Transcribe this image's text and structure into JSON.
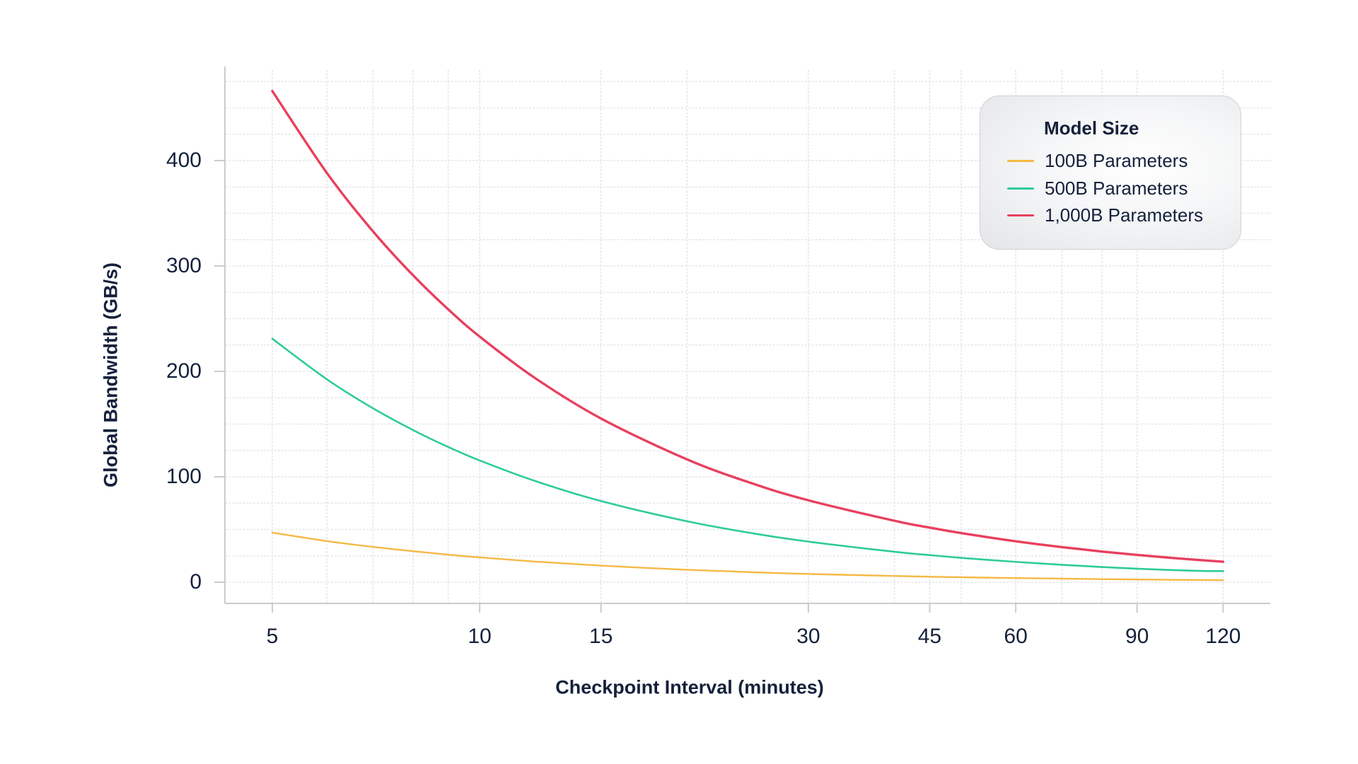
{
  "chart_data": {
    "type": "line",
    "title": "",
    "xlabel": "Checkpoint Interval (minutes)",
    "ylabel": "Global Bandwidth (GB/s)",
    "x_scale": "log",
    "x_ticks": [
      5,
      10,
      15,
      30,
      45,
      60,
      90,
      120
    ],
    "x_tick_labels": [
      "5",
      "10",
      "15",
      "30",
      "45",
      "60",
      "90",
      "120"
    ],
    "x_gridlines": [
      5,
      6,
      7,
      8,
      9,
      10,
      15,
      20,
      30,
      40,
      45,
      50,
      60,
      70,
      80,
      90,
      120
    ],
    "y_ticks": [
      0,
      100,
      200,
      300,
      400
    ],
    "y_tick_labels": [
      "0",
      "100",
      "200",
      "300",
      "400"
    ],
    "y_gridline_step": 25,
    "xlim": [
      4.2,
      140
    ],
    "ylim": [
      -20,
      490
    ],
    "grid": true,
    "legend_title": "Model Size",
    "legend_position": "upper right",
    "x": [
      5,
      6,
      7,
      8,
      9,
      10,
      12,
      15,
      20,
      25,
      30,
      40,
      45,
      50,
      60,
      70,
      80,
      90,
      100,
      110,
      120
    ],
    "series": [
      {
        "name": "100B Parameters",
        "color": "#f5b945",
        "values": [
          47,
          39,
          33.5,
          29.4,
          26.1,
          23.5,
          19.6,
          15.7,
          11.8,
          9.4,
          7.8,
          5.9,
          5.2,
          4.7,
          3.9,
          3.4,
          2.9,
          2.6,
          2.3,
          2.1,
          1.9
        ]
      },
      {
        "name": "500B Parameters",
        "color": "#2ecb9b",
        "values": [
          231,
          192.5,
          165,
          144.4,
          128.3,
          115.5,
          96.3,
          77,
          57.8,
          46.2,
          38.5,
          28.9,
          25.7,
          23.1,
          19.3,
          16.5,
          14.4,
          12.8,
          11.6,
          10.8,
          10.5
        ]
      },
      {
        "name": "1,000B Parameters",
        "color": "#e8405f",
        "values": [
          466,
          388.3,
          332.9,
          291.3,
          258.9,
          233,
          194.2,
          155.3,
          116.5,
          93.2,
          77.7,
          58.3,
          51.8,
          46.6,
          38.8,
          33.3,
          29.1,
          25.9,
          23.3,
          21.2,
          19.4
        ]
      }
    ]
  },
  "axes": {
    "x_label": "Checkpoint Interval (minutes)",
    "y_label": "Global Bandwidth (GB/s)"
  },
  "legend": {
    "title": "Model Size",
    "items": [
      {
        "label": "100B Parameters",
        "color": "#f5b945"
      },
      {
        "label": "500B Parameters",
        "color": "#2ecb9b"
      },
      {
        "label": "1,000B Parameters",
        "color": "#e8405f"
      }
    ]
  },
  "colors": {
    "text": "#15213b",
    "axis": "#c9ccd1",
    "grid": "#e6e7ea"
  }
}
